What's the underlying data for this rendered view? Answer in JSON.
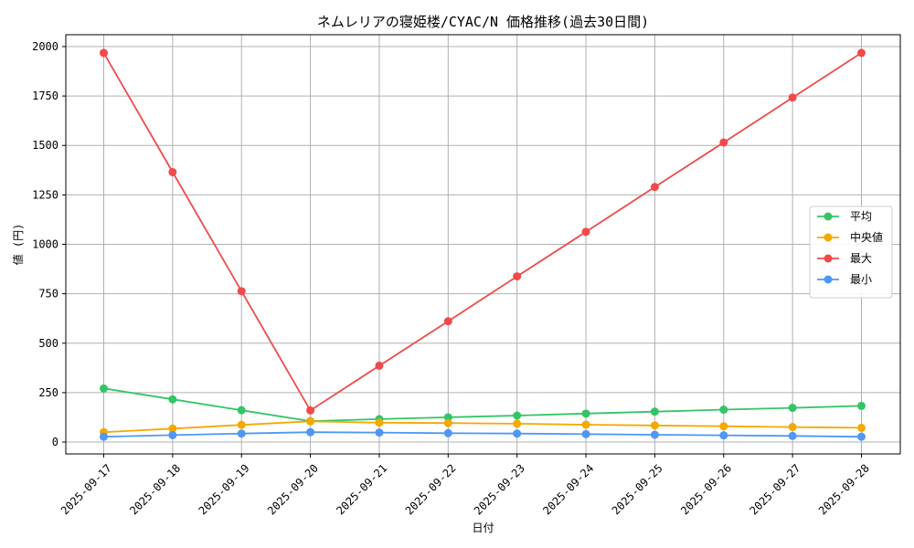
{
  "chart_data": {
    "type": "line",
    "title": "ネムレリアの寝姫楼/CYAC/N 価格推移(過去30日間)",
    "xlabel": "日付",
    "ylabel": "値 (円)",
    "ylim": [
      -60,
      2060
    ],
    "yticks": [
      0,
      250,
      500,
      750,
      1000,
      1250,
      1500,
      1750,
      2000
    ],
    "grid": true,
    "legend_position": "center-right",
    "categories": [
      "2025-09-17",
      "2025-09-18",
      "2025-09-19",
      "2025-09-20",
      "2025-09-21",
      "2025-09-22",
      "2025-09-23",
      "2025-09-24",
      "2025-09-25",
      "2025-09-26",
      "2025-09-27",
      "2025-09-28"
    ],
    "series": [
      {
        "name": "平均",
        "color": "#33c466",
        "values": [
          271,
          216,
          161,
          106,
          116,
          125,
          134,
          144,
          154,
          164,
          173,
          183
        ]
      },
      {
        "name": "中央値",
        "color": "#f5a800",
        "values": [
          50,
          68,
          87,
          105,
          98,
          96,
          93,
          88,
          84,
          80,
          76,
          72
        ]
      },
      {
        "name": "最大",
        "color": "#f04a4a",
        "values": [
          1968,
          1365,
          763,
          160,
          386,
          611,
          838,
          1063,
          1290,
          1515,
          1742,
          1968
        ]
      },
      {
        "name": "最小",
        "color": "#4f97f2",
        "values": [
          27,
          35,
          43,
          50,
          48,
          45,
          43,
          40,
          37,
          34,
          31,
          27
        ]
      }
    ]
  }
}
